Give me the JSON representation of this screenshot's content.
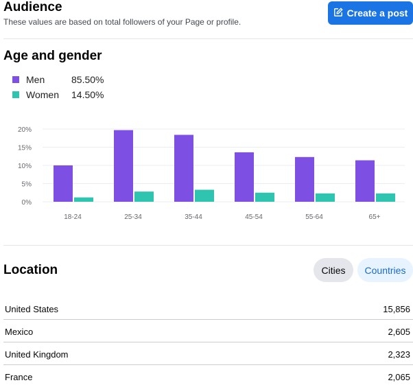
{
  "header": {
    "title": "Audience",
    "subtitle": "These values are based on total followers of your Page or profile.",
    "create_post_label": "Create a post"
  },
  "age_gender": {
    "title": "Age and gender",
    "legend": [
      {
        "name": "Men",
        "value": "85.50%",
        "color": "#7d4fe3"
      },
      {
        "name": "Women",
        "value": "14.50%",
        "color": "#2ec4b0"
      }
    ]
  },
  "chart_data": {
    "type": "bar",
    "categories": [
      "18-24",
      "25-34",
      "35-44",
      "45-54",
      "55-64",
      "65+"
    ],
    "series": [
      {
        "name": "Men",
        "color": "#7d4fe3",
        "values": [
          10.0,
          19.7,
          18.4,
          13.6,
          12.3,
          11.4
        ]
      },
      {
        "name": "Women",
        "color": "#2ec4b0",
        "values": [
          1.2,
          2.8,
          3.3,
          2.5,
          2.3,
          2.3
        ]
      }
    ],
    "yticks": [
      "0%",
      "5%",
      "10%",
      "15%",
      "20%"
    ],
    "ylim": [
      0,
      20
    ],
    "grid": true
  },
  "location": {
    "title": "Location",
    "tabs": [
      "Cities",
      "Countries"
    ],
    "selected_tab": "Countries",
    "rows": [
      {
        "name": "United States",
        "value": "15,856"
      },
      {
        "name": "Mexico",
        "value": "2,605"
      },
      {
        "name": "United Kingdom",
        "value": "2,323"
      },
      {
        "name": "France",
        "value": "2,065"
      }
    ]
  }
}
